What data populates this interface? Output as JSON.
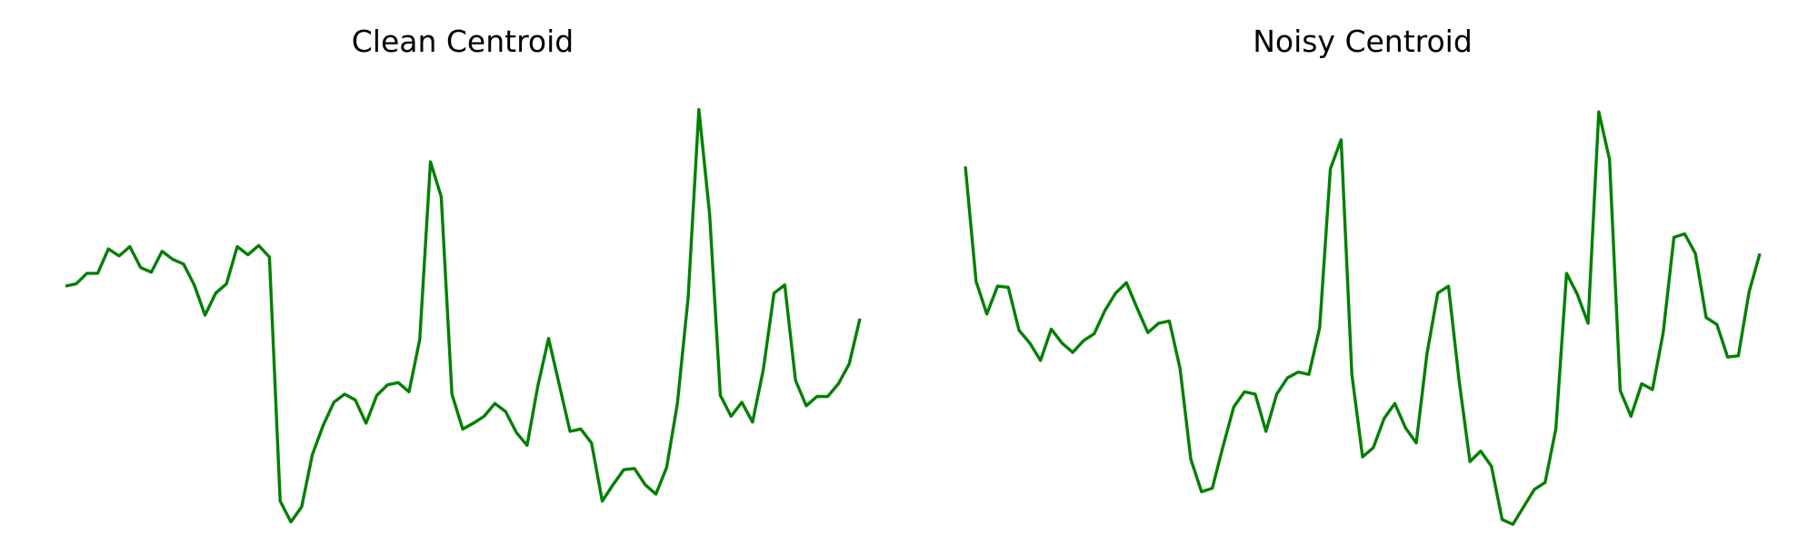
{
  "chart_data": [
    {
      "type": "line",
      "title": "Clean Centroid",
      "xlabel": "",
      "ylabel": "",
      "grid": false,
      "axes_visible": false,
      "color": "#008000",
      "ylim": [
        -1.3,
        3.0
      ],
      "x": [
        0,
        1,
        2,
        3,
        4,
        5,
        6,
        7,
        8,
        9,
        10,
        11,
        12,
        13,
        14,
        15,
        16,
        17,
        18,
        19,
        20,
        21,
        22,
        23,
        24,
        25,
        26,
        27,
        28,
        29,
        30,
        31,
        32,
        33,
        34,
        35,
        36,
        37,
        38,
        39,
        40,
        41,
        42,
        43,
        44,
        45,
        46,
        47,
        48,
        49,
        50,
        51,
        52,
        53,
        54,
        55,
        56,
        57,
        58,
        59,
        60,
        61,
        62,
        63,
        64,
        65,
        66,
        67,
        68,
        69,
        70,
        71,
        72,
        73,
        74
      ],
      "series": [
        {
          "values": [
            0.85,
            0.87,
            0.96,
            0.96,
            1.17,
            1.11,
            1.19,
            1.01,
            0.97,
            1.15,
            1.08,
            1.04,
            0.86,
            0.6,
            0.79,
            0.87,
            1.19,
            1.12,
            1.2,
            1.1,
            -1.0,
            -1.18,
            -1.05,
            -0.6,
            -0.35,
            -0.15,
            -0.08,
            -0.13,
            -0.33,
            -0.09,
            0.0,
            0.02,
            -0.06,
            0.39,
            1.92,
            1.62,
            -0.08,
            -0.38,
            -0.33,
            -0.27,
            -0.16,
            -0.23,
            -0.41,
            -0.52,
            -0.01,
            0.4,
            0.0,
            -0.4,
            -0.38,
            -0.5,
            -1.0,
            -0.86,
            -0.73,
            -0.72,
            -0.86,
            -0.94,
            -0.71,
            -0.16,
            0.75,
            2.37,
            1.47,
            -0.09,
            -0.27,
            -0.15,
            -0.32,
            0.13,
            0.79,
            0.86,
            0.04,
            -0.18,
            -0.1,
            -0.1,
            0.01,
            0.18,
            0.57
          ]
        }
      ]
    },
    {
      "type": "line",
      "title": "Noisy Centroid",
      "xlabel": "",
      "ylabel": "",
      "grid": false,
      "axes_visible": false,
      "color": "#008000",
      "ylim": [
        -1.3,
        3.0
      ],
      "x": [
        0,
        1,
        2,
        3,
        4,
        5,
        6,
        7,
        8,
        9,
        10,
        11,
        12,
        13,
        14,
        15,
        16,
        17,
        18,
        19,
        20,
        21,
        22,
        23,
        24,
        25,
        26,
        27,
        28,
        29,
        30,
        31,
        32,
        33,
        34,
        35,
        36,
        37,
        38,
        39,
        40,
        41,
        42,
        43,
        44,
        45,
        46,
        47,
        48,
        49,
        50,
        51,
        52,
        53,
        54,
        55,
        56,
        57,
        58,
        59,
        60,
        61,
        62,
        63,
        64,
        65,
        66,
        67,
        68,
        69,
        70,
        71,
        72,
        73,
        74
      ],
      "series": [
        {
          "values": [
            1.88,
            0.89,
            0.61,
            0.85,
            0.84,
            0.47,
            0.36,
            0.21,
            0.48,
            0.36,
            0.28,
            0.38,
            0.44,
            0.64,
            0.79,
            0.88,
            0.66,
            0.45,
            0.53,
            0.55,
            0.14,
            -0.64,
            -0.92,
            -0.89,
            -0.53,
            -0.19,
            -0.06,
            -0.08,
            -0.4,
            -0.08,
            0.06,
            0.11,
            0.09,
            0.49,
            1.86,
            2.11,
            0.09,
            -0.62,
            -0.54,
            -0.29,
            -0.16,
            -0.37,
            -0.5,
            0.27,
            0.79,
            0.85,
            0.03,
            -0.66,
            -0.57,
            -0.7,
            -1.16,
            -1.2,
            -1.05,
            -0.9,
            -0.84,
            -0.38,
            0.96,
            0.78,
            0.53,
            2.35,
            1.94,
            -0.05,
            -0.27,
            0.01,
            -0.04,
            0.45,
            1.27,
            1.3,
            1.13,
            0.58,
            0.52,
            0.24,
            0.25,
            0.8,
            1.13
          ]
        }
      ]
    }
  ]
}
